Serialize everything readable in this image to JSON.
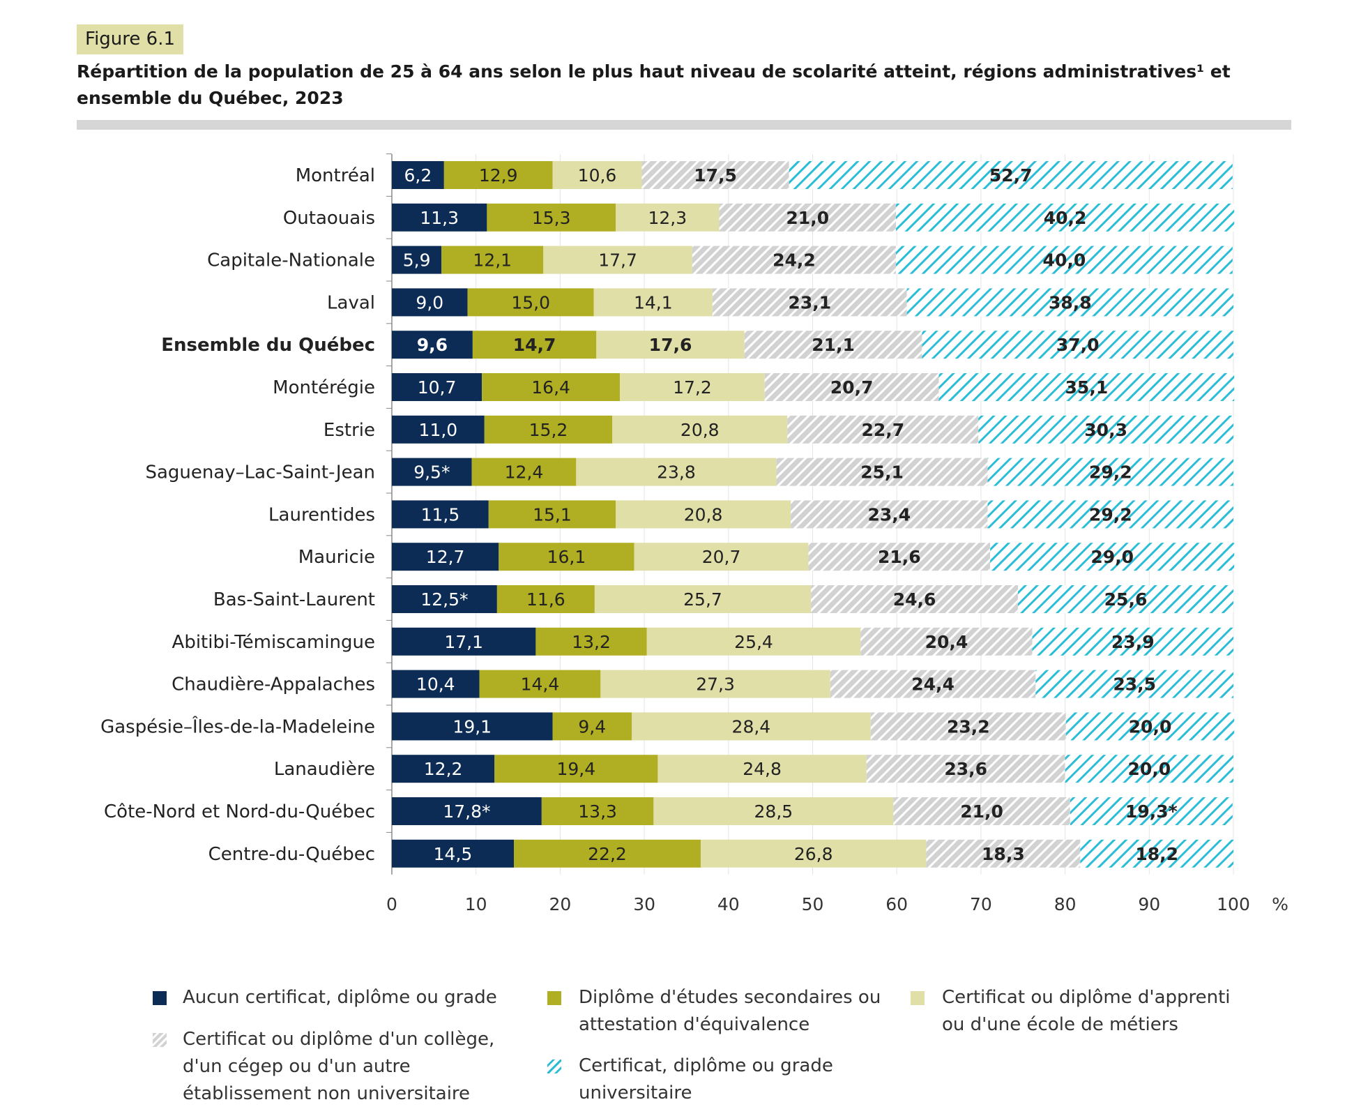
{
  "figure_label": "Figure 6.1",
  "title": "Répartition de la population de 25 à 64 ans selon le plus haut niveau de scolarité atteint, régions administratives¹ et ensemble du Québec, 2023",
  "chart_data": {
    "type": "bar",
    "orientation": "horizontal-stacked",
    "xlabel": "%",
    "xlim": [
      0,
      100
    ],
    "xticks": [
      "0",
      "10",
      "20",
      "30",
      "40",
      "50",
      "60",
      "70",
      "80",
      "90",
      "100"
    ],
    "grid": true,
    "legend_position": "bottom",
    "categories": [
      "Montréal",
      "Outaouais",
      "Capitale-Nationale",
      "Laval",
      "Ensemble du Québec",
      "Montérégie",
      "Estrie",
      "Saguenay–Lac-Saint-Jean",
      "Laurentides",
      "Mauricie",
      "Bas-Saint-Laurent",
      "Abitibi-Témiscamingue",
      "Chaudière-Appalaches",
      "Gaspésie–Îles-de-la-Madeleine",
      "Lanaudière",
      "Côte-Nord et Nord-du-Québec",
      "Centre-du-Québec"
    ],
    "highlight_category": "Ensemble du Québec",
    "series": [
      {
        "name": "Aucun certificat, diplôme ou grade",
        "color": "#0c2c55",
        "pattern": "solid",
        "values": [
          6.2,
          11.3,
          5.9,
          9.0,
          9.6,
          10.7,
          11.0,
          9.5,
          11.5,
          12.7,
          12.5,
          17.1,
          10.4,
          19.1,
          12.2,
          17.8,
          14.5
        ],
        "labels": [
          "6,2",
          "11,3",
          "5,9",
          "9,0",
          "9,6",
          "10,7",
          "11,0",
          "9,5*",
          "11,5",
          "12,7",
          "12,5*",
          "17,1",
          "10,4",
          "19,1",
          "12,2",
          "17,8*",
          "14,5"
        ]
      },
      {
        "name": "Diplôme d'études secondaires ou attestation d'équivalence",
        "color": "#b0ae22",
        "pattern": "solid",
        "values": [
          12.9,
          15.3,
          12.1,
          15.0,
          14.7,
          16.4,
          15.2,
          12.4,
          15.1,
          16.1,
          11.6,
          13.2,
          14.4,
          9.4,
          19.4,
          13.3,
          22.2
        ],
        "labels": [
          "12,9",
          "15,3",
          "12,1",
          "15,0",
          "14,7",
          "16,4",
          "15,2",
          "12,4",
          "15,1",
          "16,1",
          "11,6",
          "13,2",
          "14,4",
          "9,4",
          "19,4",
          "13,3",
          "22,2"
        ]
      },
      {
        "name": "Certificat ou diplôme d'apprenti ou d'une école de métiers",
        "color": "#e0dfa8",
        "pattern": "solid",
        "values": [
          10.6,
          12.3,
          17.7,
          14.1,
          17.6,
          17.2,
          20.8,
          23.8,
          20.8,
          20.7,
          25.7,
          25.4,
          27.3,
          28.4,
          24.8,
          28.5,
          26.8
        ],
        "labels": [
          "10,6",
          "12,3",
          "17,7",
          "14,1",
          "17,6",
          "17,2",
          "20,8",
          "23,8",
          "20,8",
          "20,7",
          "25,7",
          "25,4",
          "27,3",
          "28,4",
          "24,8",
          "28,5",
          "26,8"
        ]
      },
      {
        "name": "Certificat ou diplôme d'un collège, d'un cégep ou d'un autre établissement non universitaire",
        "color": "#d2d2d2",
        "pattern": "hatch",
        "values": [
          17.5,
          21.0,
          24.2,
          23.1,
          21.1,
          20.7,
          22.7,
          25.1,
          23.4,
          21.6,
          24.6,
          20.4,
          24.4,
          23.2,
          23.6,
          21.0,
          18.3
        ],
        "labels": [
          "17,5",
          "21,0",
          "24,2",
          "23,1",
          "21,1",
          "20,7",
          "22,7",
          "25,1",
          "23,4",
          "21,6",
          "24,6",
          "20,4",
          "24,4",
          "23,2",
          "23,6",
          "21,0",
          "18,3"
        ]
      },
      {
        "name": "Certificat, diplôme ou grade universitaire",
        "color": "#2bbdd6",
        "pattern": "hatch",
        "values": [
          52.7,
          40.2,
          40.0,
          38.8,
          37.0,
          35.1,
          30.3,
          29.2,
          29.2,
          29.0,
          25.6,
          23.9,
          23.5,
          20.0,
          20.0,
          19.3,
          18.2
        ],
        "labels": [
          "52,7",
          "40,2",
          "40,0",
          "38,8",
          "37,0",
          "35,1",
          "30,3",
          "29,2",
          "29,2",
          "29,0",
          "25,6",
          "23,9",
          "23,5",
          "20,0",
          "20,0",
          "19,3*",
          "18,2"
        ]
      }
    ]
  }
}
